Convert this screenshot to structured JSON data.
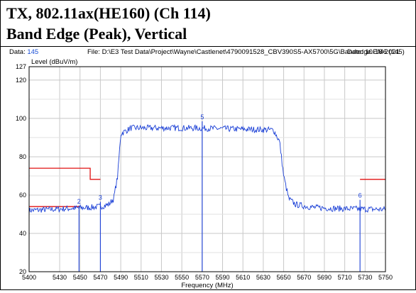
{
  "header": {
    "line1": "TX, 802.11ax(HE160) (Ch 114)",
    "line2": "Band Edge (Peak), Vertical"
  },
  "info": {
    "data_label": "Data:",
    "data_value": "145",
    "file_text": "File: D:\\E3 Test Data\\Project\\Wayne\\Castlenet\\4790091528_CBV390S5-AX5700\\5G\\Bandedge.EM6  (145)",
    "date_text": "Date: 10-18-2021"
  },
  "colors": {
    "trace": "#1a3fd6",
    "limit": "#e01010",
    "grid": "#c8c8c8",
    "marker": "#1a3fd6"
  },
  "chart_data": {
    "type": "line",
    "title": "",
    "xlabel": "Frequency (MHz)",
    "ylabel": "Level (dBuV/m)",
    "xlim": [
      5400,
      5750
    ],
    "ylim": [
      20,
      127
    ],
    "x_ticks": [
      5400,
      5430,
      5450,
      5470,
      5490,
      5510,
      5530,
      5550,
      5570,
      5590,
      5610,
      5630,
      5650,
      5670,
      5690,
      5710,
      5730,
      5750
    ],
    "y_ticks": [
      20,
      40,
      60,
      80,
      100,
      120,
      127
    ],
    "grid": true,
    "limit_lines": [
      {
        "x": [
          5400,
          5460,
          5460,
          5470
        ],
        "y": [
          74,
          74,
          68.2,
          68.2
        ]
      },
      {
        "x": [
          5400,
          5450
        ],
        "y": [
          54,
          54
        ]
      },
      {
        "x": [
          5725,
          5750
        ],
        "y": [
          68.2,
          68.2
        ]
      }
    ],
    "trace_envelope": {
      "x": [
        5400,
        5440,
        5460,
        5470,
        5478,
        5483,
        5487,
        5490,
        5500,
        5560,
        5640,
        5646,
        5650,
        5655,
        5662,
        5680,
        5700,
        5750
      ],
      "y": [
        52,
        53,
        53.5,
        54,
        55,
        58,
        70,
        92,
        95,
        95,
        94,
        88,
        70,
        58,
        55,
        53.5,
        53,
        52.5
      ],
      "noise_amplitude": 1.6
    },
    "markers": [
      {
        "label": "2",
        "x": 5449,
        "y": 54.5
      },
      {
        "label": "3",
        "x": 5470,
        "y": 56.5
      },
      {
        "label": "5",
        "x": 5570,
        "y": 98.5
      },
      {
        "label": "6",
        "x": 5725,
        "y": 57.5
      }
    ]
  }
}
